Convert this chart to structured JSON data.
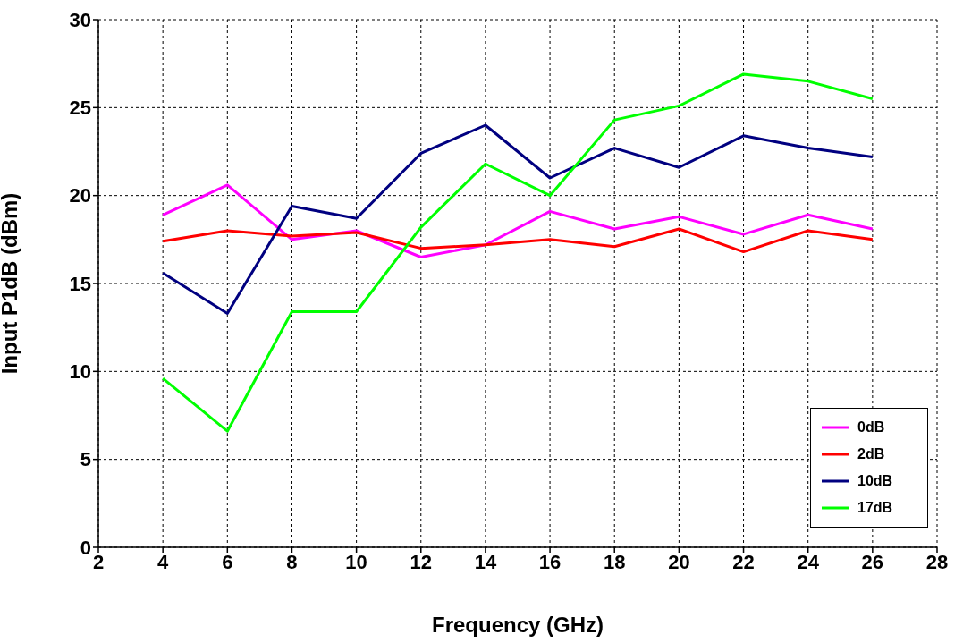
{
  "chart_data": {
    "type": "line",
    "xlabel": "Frequency (GHz)",
    "ylabel": "Input P1dB (dBm)",
    "x": [
      4,
      6,
      8,
      10,
      12,
      14,
      16,
      18,
      20,
      22,
      24,
      26
    ],
    "series": [
      {
        "name": "0dB",
        "color": "#ff00ff",
        "values": [
          18.9,
          20.6,
          17.5,
          18.0,
          16.5,
          17.2,
          19.1,
          18.1,
          18.8,
          17.8,
          18.9,
          18.1
        ]
      },
      {
        "name": "2dB",
        "color": "#ff0000",
        "values": [
          17.4,
          18.0,
          17.7,
          17.9,
          17.0,
          17.2,
          17.5,
          17.1,
          18.1,
          16.8,
          18.0,
          17.5
        ]
      },
      {
        "name": "10dB",
        "color": "#000080",
        "values": [
          15.6,
          13.3,
          19.4,
          18.7,
          22.4,
          24.0,
          21.0,
          22.7,
          21.6,
          23.4,
          22.7,
          22.2
        ]
      },
      {
        "name": "17dB",
        "color": "#00ff00",
        "values": [
          9.6,
          6.6,
          13.4,
          13.4,
          18.2,
          21.8,
          20.0,
          24.3,
          25.1,
          26.9,
          26.5,
          25.5
        ]
      }
    ],
    "xlim": [
      2,
      28
    ],
    "xticks": [
      2,
      4,
      6,
      8,
      10,
      12,
      14,
      16,
      18,
      20,
      22,
      24,
      26,
      28
    ],
    "ylim": [
      0,
      30
    ],
    "yticks": [
      0,
      5,
      10,
      15,
      20,
      25,
      30
    ],
    "grid": true,
    "legend": "bottom right",
    "marker": "none",
    "line_style": "solid"
  }
}
